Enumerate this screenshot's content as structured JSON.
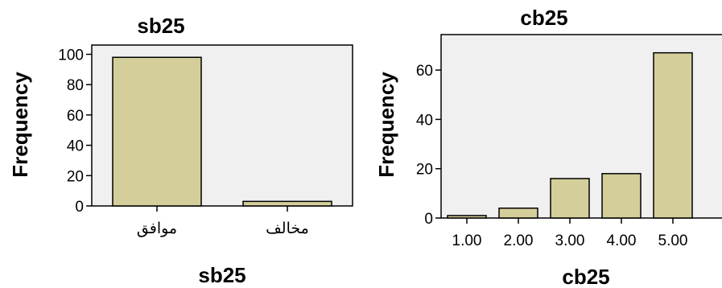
{
  "chart_data": [
    {
      "type": "bar",
      "title": "sb25",
      "xlabel": "sb25",
      "ylabel": "Frequency",
      "categories": [
        "موافق",
        "مخالف"
      ],
      "values": [
        98,
        3
      ],
      "ylim": [
        0,
        105
      ],
      "yticks": [
        0,
        20,
        40,
        60,
        80,
        100
      ],
      "grid": false
    },
    {
      "type": "bar",
      "title": "cb25",
      "xlabel": "cb25",
      "ylabel": "Frequency",
      "categories": [
        "1.00",
        "2.00",
        "3.00",
        "4.00",
        "5.00"
      ],
      "values": [
        1,
        4,
        16,
        18,
        67
      ],
      "ylim": [
        0,
        74
      ],
      "yticks": [
        0,
        20,
        40,
        60
      ],
      "grid": false
    }
  ],
  "colors": {
    "bar_fill": "#d4cf9a",
    "bar_stroke": "#000000",
    "plot_background": "#f0f0f0",
    "page_background": "#ffffff"
  }
}
